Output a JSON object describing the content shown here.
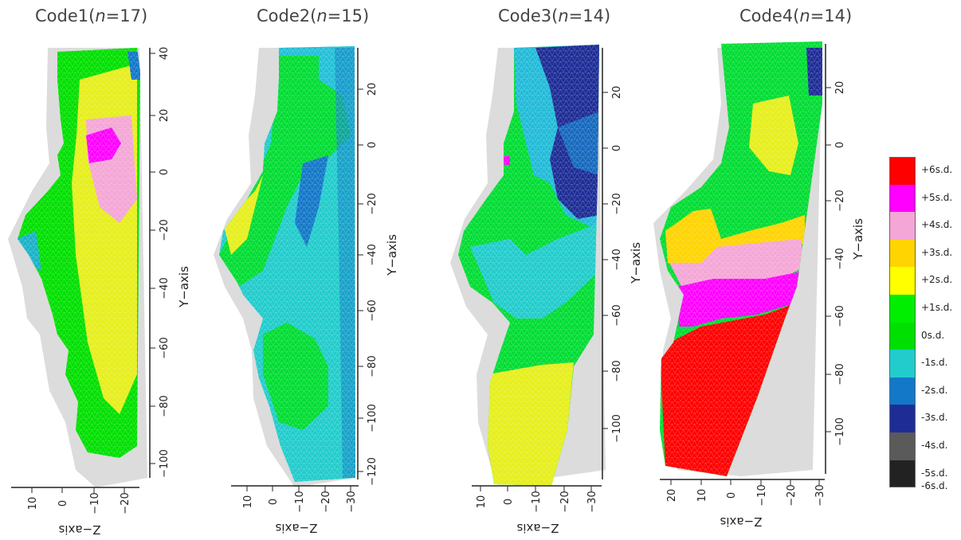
{
  "panels": [
    {
      "name": "Code1",
      "n_label": "n",
      "n_value": "17",
      "y_axis_label": "Y−axis",
      "z_axis_label": "Z−axis",
      "y_ticks": [
        "40",
        "20",
        "0",
        "−20",
        "−40",
        "−60",
        "−80",
        "−100"
      ],
      "z_ticks": [
        "10",
        "0",
        "−10",
        "−20"
      ]
    },
    {
      "name": "Code2",
      "n_label": "n",
      "n_value": "15",
      "y_axis_label": "Y−axis",
      "z_axis_label": "Z−axis",
      "y_ticks": [
        "20",
        "0",
        "−20",
        "−40",
        "−60",
        "−80",
        "−100",
        "−120"
      ],
      "z_ticks": [
        "10",
        "0",
        "−10",
        "−20",
        "−30"
      ]
    },
    {
      "name": "Code3",
      "n_label": "n",
      "n_value": "14",
      "y_axis_label": "Y−axis",
      "z_axis_label": "Z−axis",
      "y_ticks": [
        "20",
        "0",
        "−20",
        "−40",
        "−60",
        "−80",
        "−100"
      ],
      "z_ticks": [
        "10",
        "0",
        "−10",
        "−20",
        "−30"
      ]
    },
    {
      "name": "Code4",
      "n_label": "n",
      "n_value": "14",
      "y_axis_label": "Y−axis",
      "z_axis_label": "Z−axis",
      "y_ticks": [
        "20",
        "0",
        "−20",
        "−40",
        "−60",
        "−80",
        "−100"
      ],
      "z_ticks": [
        "20",
        "10",
        "0",
        "−10",
        "−20",
        "−30"
      ]
    }
  ],
  "legend": [
    {
      "label": "+6s.d.",
      "color": "#ff0000"
    },
    {
      "label": "+5s.d.",
      "color": "#ff00ff"
    },
    {
      "label": "+4s.d.",
      "color": "#f4a6d6"
    },
    {
      "label": "+3s.d.",
      "color": "#ffd400"
    },
    {
      "label": "+2s.d.",
      "color": "#ffff00"
    },
    {
      "label": "+1s.d.",
      "color": "#00ee00"
    },
    {
      "label": "0s.d.",
      "color": "#00e000"
    },
    {
      "label": "-1s.d.",
      "color": "#22cccc"
    },
    {
      "label": "-2s.d.",
      "color": "#1478c8"
    },
    {
      "label": "-3s.d.",
      "color": "#1e2d96"
    },
    {
      "label": "-4s.d.",
      "color": "#5a5a5a"
    },
    {
      "label": "-5s.d.",
      "color": "#222222"
    }
  ],
  "legend_extra": [
    {
      "label": "+6s.d."
    },
    {
      "label": "-6s.d."
    }
  ]
}
